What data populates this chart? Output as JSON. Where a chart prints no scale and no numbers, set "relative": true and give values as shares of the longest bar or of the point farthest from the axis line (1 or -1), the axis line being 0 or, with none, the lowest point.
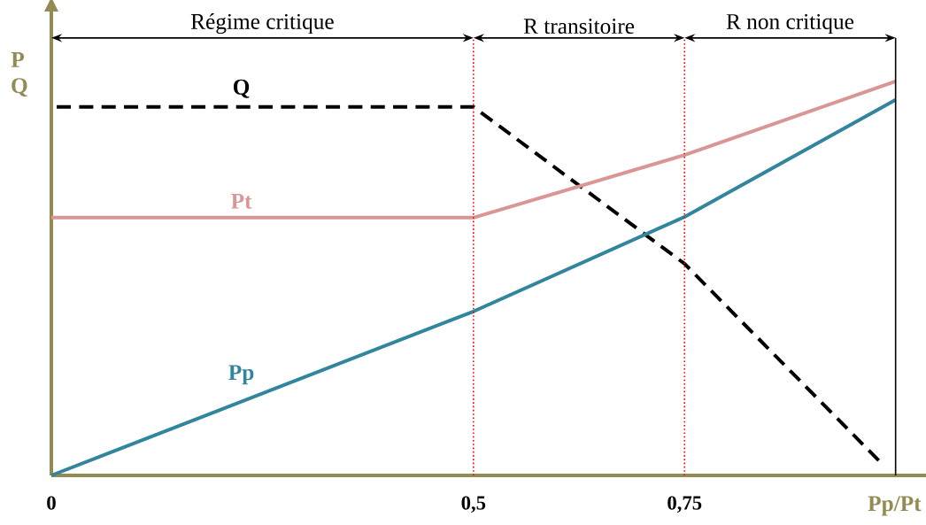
{
  "chart_data": {
    "type": "line",
    "relative": true,
    "xlabel": "Pp/Pt",
    "ylabel": "P Q",
    "xlim": [
      0,
      1.05
    ],
    "xticks": [
      0,
      {
        "value": 0.5,
        "label": "0,5"
      },
      {
        "value": 0.75,
        "label": "0,75"
      }
    ],
    "series": [
      {
        "name": "Q",
        "color": "#000000",
        "line_style": "dashed",
        "x": [
          0,
          0.5,
          0.75,
          0.98
        ],
        "values": [
          0.935,
          0.935,
          0.537,
          0.038
        ]
      },
      {
        "name": "Pt",
        "color": "#d99694",
        "line_style": "solid",
        "x": [
          0,
          0.5,
          0.75,
          1
        ],
        "values": [
          0.654,
          0.654,
          0.813,
          1
        ]
      },
      {
        "name": "Pp",
        "color": "#31859c",
        "line_style": "solid",
        "x": [
          0,
          0.5,
          0.75,
          1
        ],
        "values": [
          0,
          0.416,
          0.656,
          0.953
        ]
      }
    ],
    "ref_lines": [
      {
        "axis": "x",
        "value": 0.5,
        "color": "#ff0000",
        "line_style": "dotted"
      },
      {
        "axis": "x",
        "value": 0.75,
        "color": "#ff0000",
        "line_style": "dotted"
      },
      {
        "axis": "x",
        "value": 1,
        "color": "#000000",
        "line_style": "solid"
      }
    ],
    "annotations": [
      "Régime critique",
      "R  transitoire",
      "R  non critique"
    ],
    "marker": "none"
  }
}
